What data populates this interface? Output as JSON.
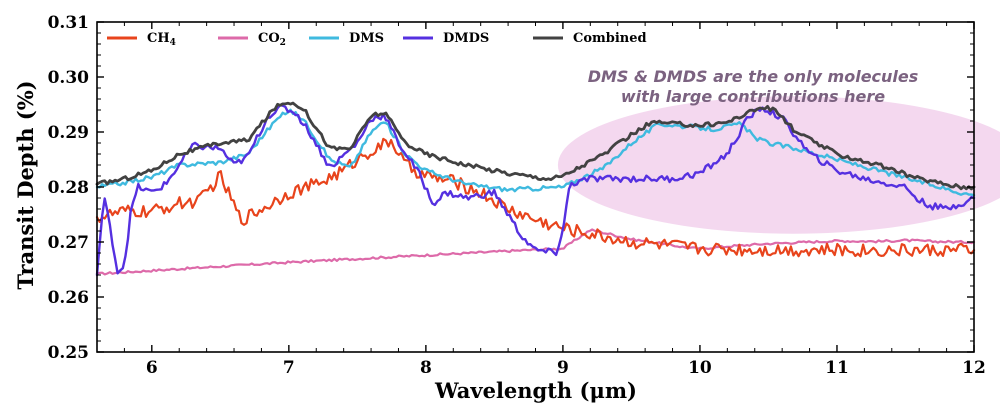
{
  "chart_data": {
    "type": "line",
    "title": "",
    "xlabel": "Wavelength (μm)",
    "ylabel": "Transit Depth (%)",
    "xlim": [
      5.6,
      12
    ],
    "ylim": [
      0.25,
      0.31
    ],
    "xticks": [
      6,
      7,
      8,
      9,
      10,
      11,
      12
    ],
    "yticks": [
      0.25,
      0.26,
      0.27,
      0.28,
      0.29,
      0.3,
      0.31
    ],
    "ytick_labels": [
      "0.25",
      "0.26",
      "0.27",
      "0.28",
      "0.29",
      "0.30",
      "0.31"
    ],
    "legend_position": "top",
    "annotation": {
      "lines": [
        "DMS & DMDS are the only molecules",
        "with large contributions here"
      ],
      "region_x": [
        9.0,
        12.0
      ],
      "region_y": [
        0.2715,
        0.2965
      ],
      "color": "#f3d6ee"
    },
    "series": [
      {
        "name": "CO2",
        "label": "CO",
        "sub": "2",
        "color": "#dd6aa9",
        "width": 2.2,
        "noise": 0.0002,
        "x": [
          5.6,
          6.0,
          7.0,
          8.0,
          8.8,
          9.0,
          9.1,
          9.2,
          9.35,
          9.5,
          9.7,
          9.9,
          10.0,
          10.2,
          10.5,
          10.8,
          11.0,
          11.3,
          11.5,
          11.7,
          11.9,
          12.0
        ],
        "y": [
          0.2642,
          0.2648,
          0.2663,
          0.2676,
          0.2686,
          0.2688,
          0.2705,
          0.2722,
          0.2714,
          0.2705,
          0.2698,
          0.269,
          0.2688,
          0.2692,
          0.2697,
          0.27,
          0.2702,
          0.2701,
          0.2703,
          0.2701,
          0.27,
          0.27
        ]
      },
      {
        "name": "CH4",
        "label": "CH",
        "sub": "4",
        "color": "#e8441c",
        "width": 2.2,
        "noise": 0.0012,
        "x": [
          5.6,
          5.8,
          6.0,
          6.2,
          6.35,
          6.5,
          6.65,
          6.8,
          7.0,
          7.2,
          7.4,
          7.55,
          7.65,
          7.75,
          7.85,
          8.0,
          8.2,
          8.4,
          8.6,
          8.8,
          9.0,
          9.2,
          9.5,
          9.8,
          10.0,
          10.5,
          11.0,
          11.5,
          12.0
        ],
        "y": [
          0.2745,
          0.2755,
          0.2755,
          0.277,
          0.2775,
          0.282,
          0.274,
          0.276,
          0.279,
          0.2805,
          0.283,
          0.286,
          0.287,
          0.2885,
          0.284,
          0.282,
          0.281,
          0.279,
          0.276,
          0.274,
          0.2725,
          0.2715,
          0.27,
          0.2693,
          0.2688,
          0.2686,
          0.2685,
          0.2685,
          0.2685
        ]
      },
      {
        "name": "DMS",
        "label": "DMS",
        "sub": "",
        "color": "#3fbadf",
        "width": 2.4,
        "noise": 0.0004,
        "x": [
          5.6,
          5.8,
          6.0,
          6.2,
          6.5,
          6.7,
          6.9,
          7.0,
          7.1,
          7.3,
          7.45,
          7.6,
          7.7,
          7.85,
          8.0,
          8.3,
          8.6,
          9.0,
          9.3,
          9.5,
          9.7,
          9.9,
          10.1,
          10.3,
          10.4,
          10.5,
          10.7,
          11.0,
          11.3,
          11.6,
          11.9,
          12.0
        ],
        "y": [
          0.28,
          0.2808,
          0.2818,
          0.284,
          0.2845,
          0.286,
          0.292,
          0.294,
          0.2925,
          0.285,
          0.2835,
          0.29,
          0.292,
          0.286,
          0.283,
          0.2805,
          0.2795,
          0.28,
          0.2835,
          0.288,
          0.2915,
          0.291,
          0.2905,
          0.2915,
          0.289,
          0.288,
          0.287,
          0.285,
          0.283,
          0.281,
          0.279,
          0.2785
        ]
      },
      {
        "name": "DMDS",
        "label": "DMDS",
        "sub": "",
        "color": "#5530e0",
        "width": 2.4,
        "noise": 0.0006,
        "x": [
          5.6,
          5.65,
          5.7,
          5.75,
          5.8,
          5.85,
          5.9,
          6.0,
          6.1,
          6.3,
          6.5,
          6.6,
          6.7,
          6.85,
          6.95,
          7.05,
          7.15,
          7.3,
          7.5,
          7.6,
          7.7,
          7.8,
          7.95,
          8.05,
          8.15,
          8.3,
          8.5,
          8.7,
          8.8,
          8.95,
          9.0,
          9.05,
          9.2,
          9.5,
          9.8,
          10.0,
          10.2,
          10.35,
          10.45,
          10.6,
          10.8,
          11.0,
          11.2,
          11.5,
          11.6,
          11.7,
          11.8,
          11.9,
          12.0
        ],
        "y": [
          0.264,
          0.2785,
          0.272,
          0.2645,
          0.266,
          0.276,
          0.28,
          0.279,
          0.2805,
          0.2875,
          0.287,
          0.284,
          0.2855,
          0.293,
          0.2945,
          0.2935,
          0.29,
          0.2835,
          0.288,
          0.2925,
          0.293,
          0.288,
          0.2825,
          0.277,
          0.279,
          0.278,
          0.279,
          0.271,
          0.2685,
          0.268,
          0.272,
          0.2805,
          0.2815,
          0.2815,
          0.2815,
          0.2825,
          0.286,
          0.2925,
          0.2945,
          0.2925,
          0.286,
          0.283,
          0.2815,
          0.28,
          0.2775,
          0.2765,
          0.276,
          0.277,
          0.278
        ]
      },
      {
        "name": "Combined",
        "label": "Combined",
        "sub": "",
        "color": "#424242",
        "width": 2.8,
        "noise": 0.0004,
        "x": [
          5.6,
          5.8,
          6.0,
          6.2,
          6.5,
          6.7,
          6.9,
          7.0,
          7.1,
          7.3,
          7.45,
          7.6,
          7.7,
          7.85,
          8.0,
          8.3,
          8.6,
          8.9,
          9.0,
          9.3,
          9.5,
          9.65,
          9.8,
          10.0,
          10.2,
          10.35,
          10.45,
          10.55,
          10.7,
          11.0,
          11.3,
          11.6,
          11.9,
          12.0
        ],
        "y": [
          0.2805,
          0.2815,
          0.283,
          0.286,
          0.288,
          0.2885,
          0.2945,
          0.2955,
          0.2945,
          0.287,
          0.287,
          0.293,
          0.2935,
          0.288,
          0.286,
          0.284,
          0.2825,
          0.2815,
          0.282,
          0.286,
          0.2895,
          0.2918,
          0.2915,
          0.2912,
          0.2918,
          0.2935,
          0.2945,
          0.294,
          0.29,
          0.286,
          0.284,
          0.2815,
          0.28,
          0.28
        ]
      }
    ]
  }
}
